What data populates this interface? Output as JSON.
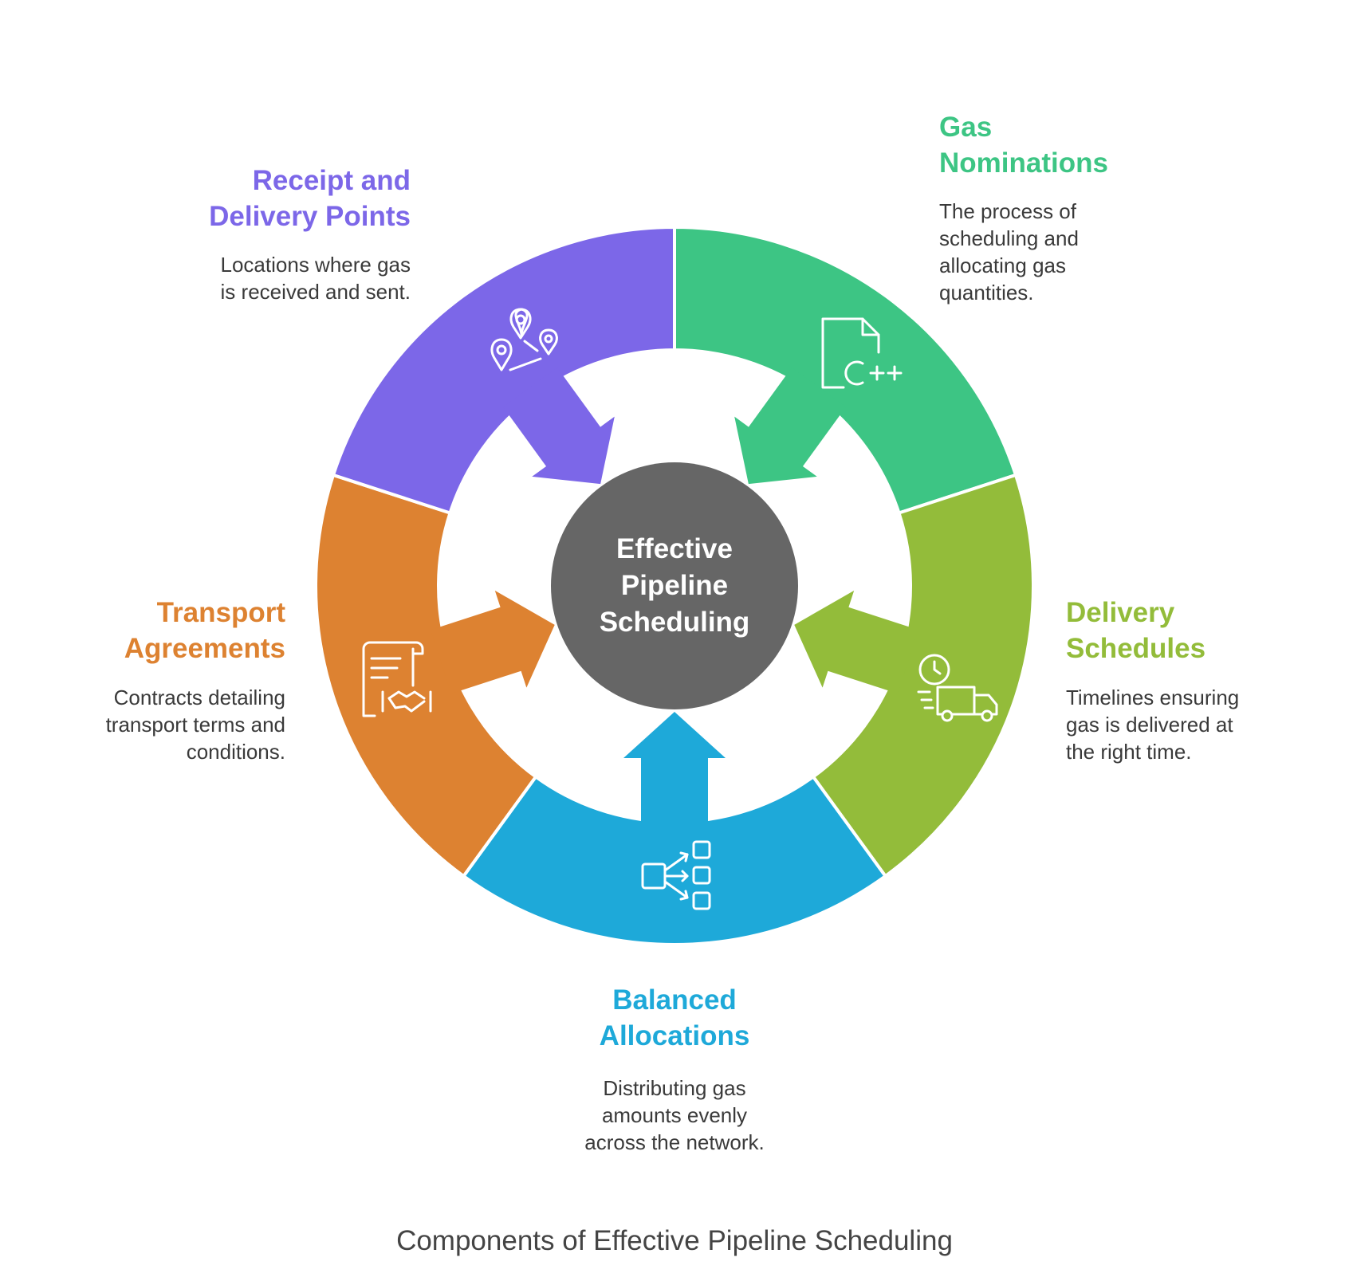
{
  "center": {
    "lines": [
      "Effective",
      "Pipeline",
      "Scheduling"
    ],
    "color": "#666666"
  },
  "segments": [
    {
      "id": "gas-nominations",
      "title_lines": [
        "Gas",
        "Nominations"
      ],
      "description_lines": [
        "The process of",
        "scheduling and",
        "allocating gas",
        "quantities."
      ],
      "color": "#3DC584",
      "icon": "cpp-file-icon"
    },
    {
      "id": "delivery-schedules",
      "title_lines": [
        "Delivery",
        "Schedules"
      ],
      "description_lines": [
        "Timelines ensuring",
        "gas is delivered at",
        "the right time."
      ],
      "color": "#93BC3A",
      "icon": "delivery-truck-clock-icon"
    },
    {
      "id": "balanced-allocations",
      "title_lines": [
        "Balanced",
        "Allocations"
      ],
      "description_lines": [
        "Distributing gas",
        "amounts evenly",
        "across the network."
      ],
      "color": "#1EA9D9",
      "icon": "distribution-icon"
    },
    {
      "id": "transport-agreements",
      "title_lines": [
        "Transport",
        "Agreements"
      ],
      "description_lines": [
        "Contracts detailing",
        "transport terms and",
        "conditions."
      ],
      "color": "#DD8231",
      "icon": "contract-handshake-icon"
    },
    {
      "id": "receipt-delivery-points",
      "title_lines": [
        "Receipt and",
        "Delivery Points"
      ],
      "description_lines": [
        "Locations where gas",
        "is received and sent."
      ],
      "color": "#7C67E8",
      "icon": "location-pins-icon"
    }
  ],
  "caption": "Components of Effective Pipeline Scheduling"
}
